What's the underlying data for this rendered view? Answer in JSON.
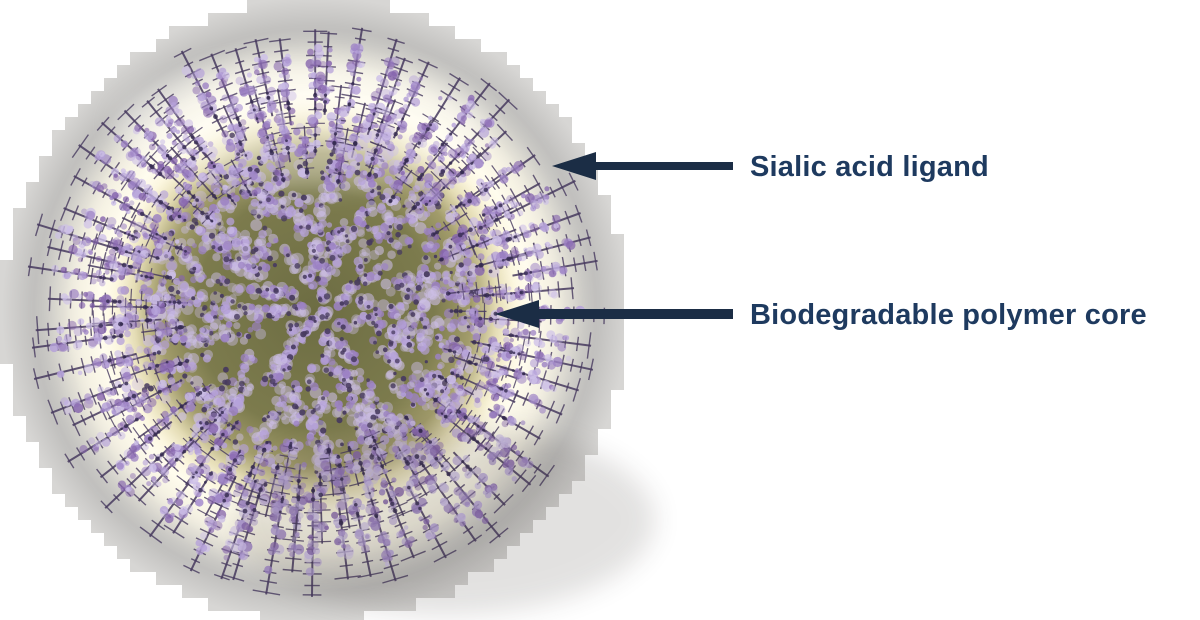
{
  "figure": {
    "background_color": "#ffffff",
    "annotations": [
      {
        "text": "Sialic acid ligand"
      },
      {
        "text": "Biodegradable polymer core"
      }
    ],
    "label_color": "#1e3a5f",
    "arrow_color": "#1b2d45",
    "particle": {
      "core_color": "#75754a",
      "core_dark": "#6d6d43",
      "glow_color": "#fffbe8",
      "cream_ring": "#fbf5dc",
      "corona_gray": "#c6c5c3",
      "corona_edge": "#d7d6d4",
      "ligand_light": "#cdbfe8",
      "ligand_mid_1": "#b5a1d9",
      "ligand_mid_2": "#9c82c4",
      "ligand_deep": "#8766ae",
      "ligand_stem": "#473a5f",
      "ligand_speckle": "#352a50"
    }
  }
}
